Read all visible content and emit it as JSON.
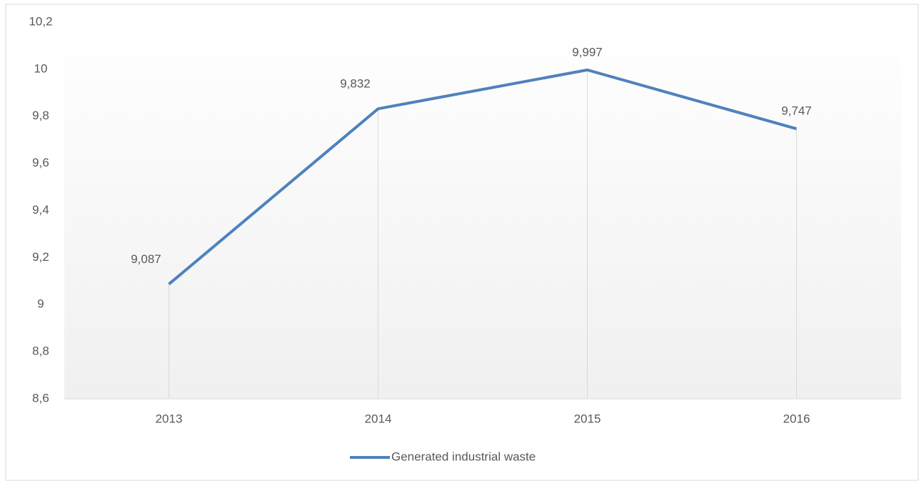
{
  "chart_data": {
    "type": "line",
    "categories": [
      "2013",
      "2014",
      "2015",
      "2016"
    ],
    "series": [
      {
        "name": "Generated industrial waste",
        "color": "#4f81bd",
        "values": [
          9.087,
          9.832,
          9.997,
          9.747
        ],
        "value_labels": [
          "9,087",
          "9,832",
          "9,997",
          "9,747"
        ]
      }
    ],
    "ylim": [
      8.6,
      10.2
    ],
    "yticks": [
      {
        "value": 8.6,
        "label": "8,6"
      },
      {
        "value": 8.8,
        "label": "8,8"
      },
      9,
      {
        "value": 9.2,
        "label": "9,2"
      },
      {
        "value": 9.4,
        "label": "9,4"
      },
      {
        "value": 9.6,
        "label": "9,6"
      },
      {
        "value": 9.8,
        "label": "9,8"
      },
      10,
      {
        "value": 10.2,
        "label": "10,2"
      }
    ],
    "grid": false,
    "drop_lines": true,
    "legend": "bottom"
  }
}
